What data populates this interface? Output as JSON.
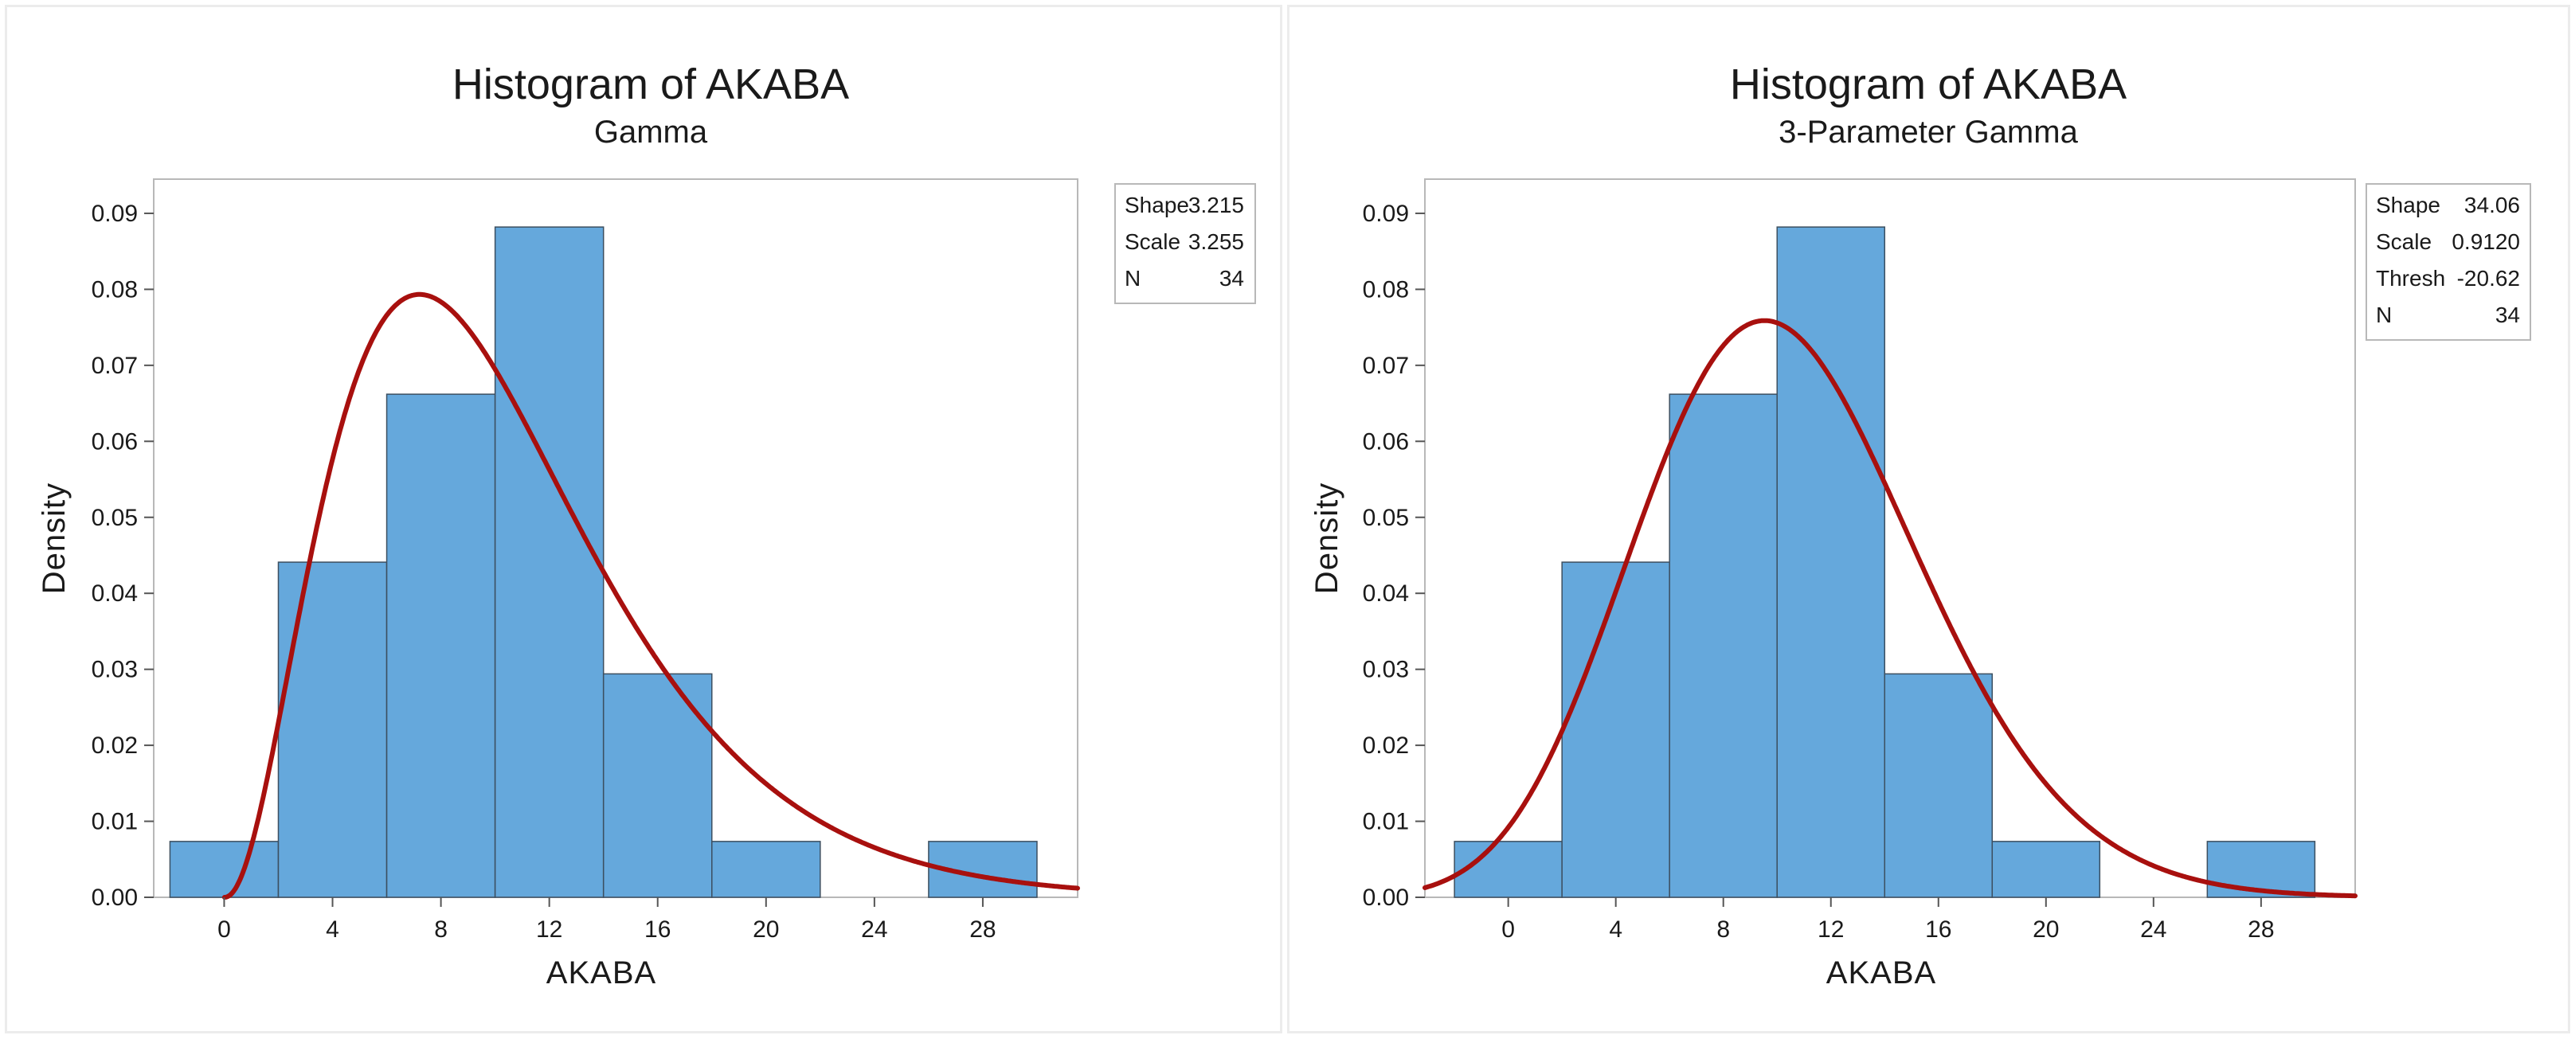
{
  "chart_data": [
    {
      "type": "bar",
      "title": "Histogram of AKABA",
      "subtitle": "Gamma",
      "xlabel": "AKABA",
      "ylabel": "Density",
      "xlim": [
        -2.6,
        31.5
      ],
      "ylim": [
        0,
        0.0945
      ],
      "xticks": [
        0,
        4,
        8,
        12,
        16,
        20,
        24,
        28
      ],
      "xtick_labels": [
        "0",
        "4",
        "8",
        "12",
        "16",
        "20",
        "24",
        "28"
      ],
      "yticks": [
        0,
        0.01,
        0.02,
        0.03,
        0.04,
        0.05,
        0.06,
        0.07,
        0.08,
        0.09
      ],
      "ytick_labels": [
        "0.00",
        "0.01",
        "0.02",
        "0.03",
        "0.04",
        "0.05",
        "0.06",
        "0.07",
        "0.08",
        "0.09"
      ],
      "bins": [
        {
          "start": -2,
          "end": 2,
          "density": 0.00735
        },
        {
          "start": 2,
          "end": 6,
          "density": 0.0441
        },
        {
          "start": 6,
          "end": 10,
          "density": 0.0662
        },
        {
          "start": 10,
          "end": 14,
          "density": 0.0882
        },
        {
          "start": 14,
          "end": 18,
          "density": 0.0294
        },
        {
          "start": 18,
          "end": 22,
          "density": 0.00735
        },
        {
          "start": 22,
          "end": 26,
          "density": 0.0
        },
        {
          "start": 26,
          "end": 30,
          "density": 0.00735
        }
      ],
      "fit": {
        "distribution": "gamma",
        "shape": 3.215,
        "scale": 3.255,
        "threshold": 0
      },
      "legend": [
        {
          "label": "Shape",
          "value": "3.215"
        },
        {
          "label": "Scale",
          "value": "3.255"
        },
        {
          "label": "N",
          "value": "34"
        }
      ],
      "legend_position": "top-right outside",
      "colors": {
        "bar": "#65a8dc",
        "bar_edge": "#3c4f60",
        "curve": "#a8100e"
      }
    },
    {
      "type": "bar",
      "title": "Histogram of AKABA",
      "subtitle": "3-Parameter Gamma",
      "xlabel": "AKABA",
      "ylabel": "Density",
      "xlim": [
        -3.1,
        31.5
      ],
      "ylim": [
        0,
        0.0945
      ],
      "xticks": [
        0,
        4,
        8,
        12,
        16,
        20,
        24,
        28
      ],
      "xtick_labels": [
        "0",
        "4",
        "8",
        "12",
        "16",
        "20",
        "24",
        "28"
      ],
      "yticks": [
        0,
        0.01,
        0.02,
        0.03,
        0.04,
        0.05,
        0.06,
        0.07,
        0.08,
        0.09
      ],
      "ytick_labels": [
        "0.00",
        "0.01",
        "0.02",
        "0.03",
        "0.04",
        "0.05",
        "0.06",
        "0.07",
        "0.08",
        "0.09"
      ],
      "bins": [
        {
          "start": -2,
          "end": 2,
          "density": 0.00735
        },
        {
          "start": 2,
          "end": 6,
          "density": 0.0441
        },
        {
          "start": 6,
          "end": 10,
          "density": 0.0662
        },
        {
          "start": 10,
          "end": 14,
          "density": 0.0882
        },
        {
          "start": 14,
          "end": 18,
          "density": 0.0294
        },
        {
          "start": 18,
          "end": 22,
          "density": 0.00735
        },
        {
          "start": 22,
          "end": 26,
          "density": 0.0
        },
        {
          "start": 26,
          "end": 30,
          "density": 0.00735
        }
      ],
      "fit": {
        "distribution": "gamma3",
        "shape": 34.06,
        "scale": 0.912,
        "threshold": -20.62
      },
      "legend": [
        {
          "label": "Shape",
          "value": "34.06"
        },
        {
          "label": "Scale",
          "value": "0.9120"
        },
        {
          "label": "Thresh",
          "value": "-20.62"
        },
        {
          "label": "N",
          "value": "34"
        }
      ],
      "legend_position": "top-right outside",
      "colors": {
        "bar": "#65a8dc",
        "bar_edge": "#3c4f60",
        "curve": "#a8100e"
      }
    }
  ]
}
